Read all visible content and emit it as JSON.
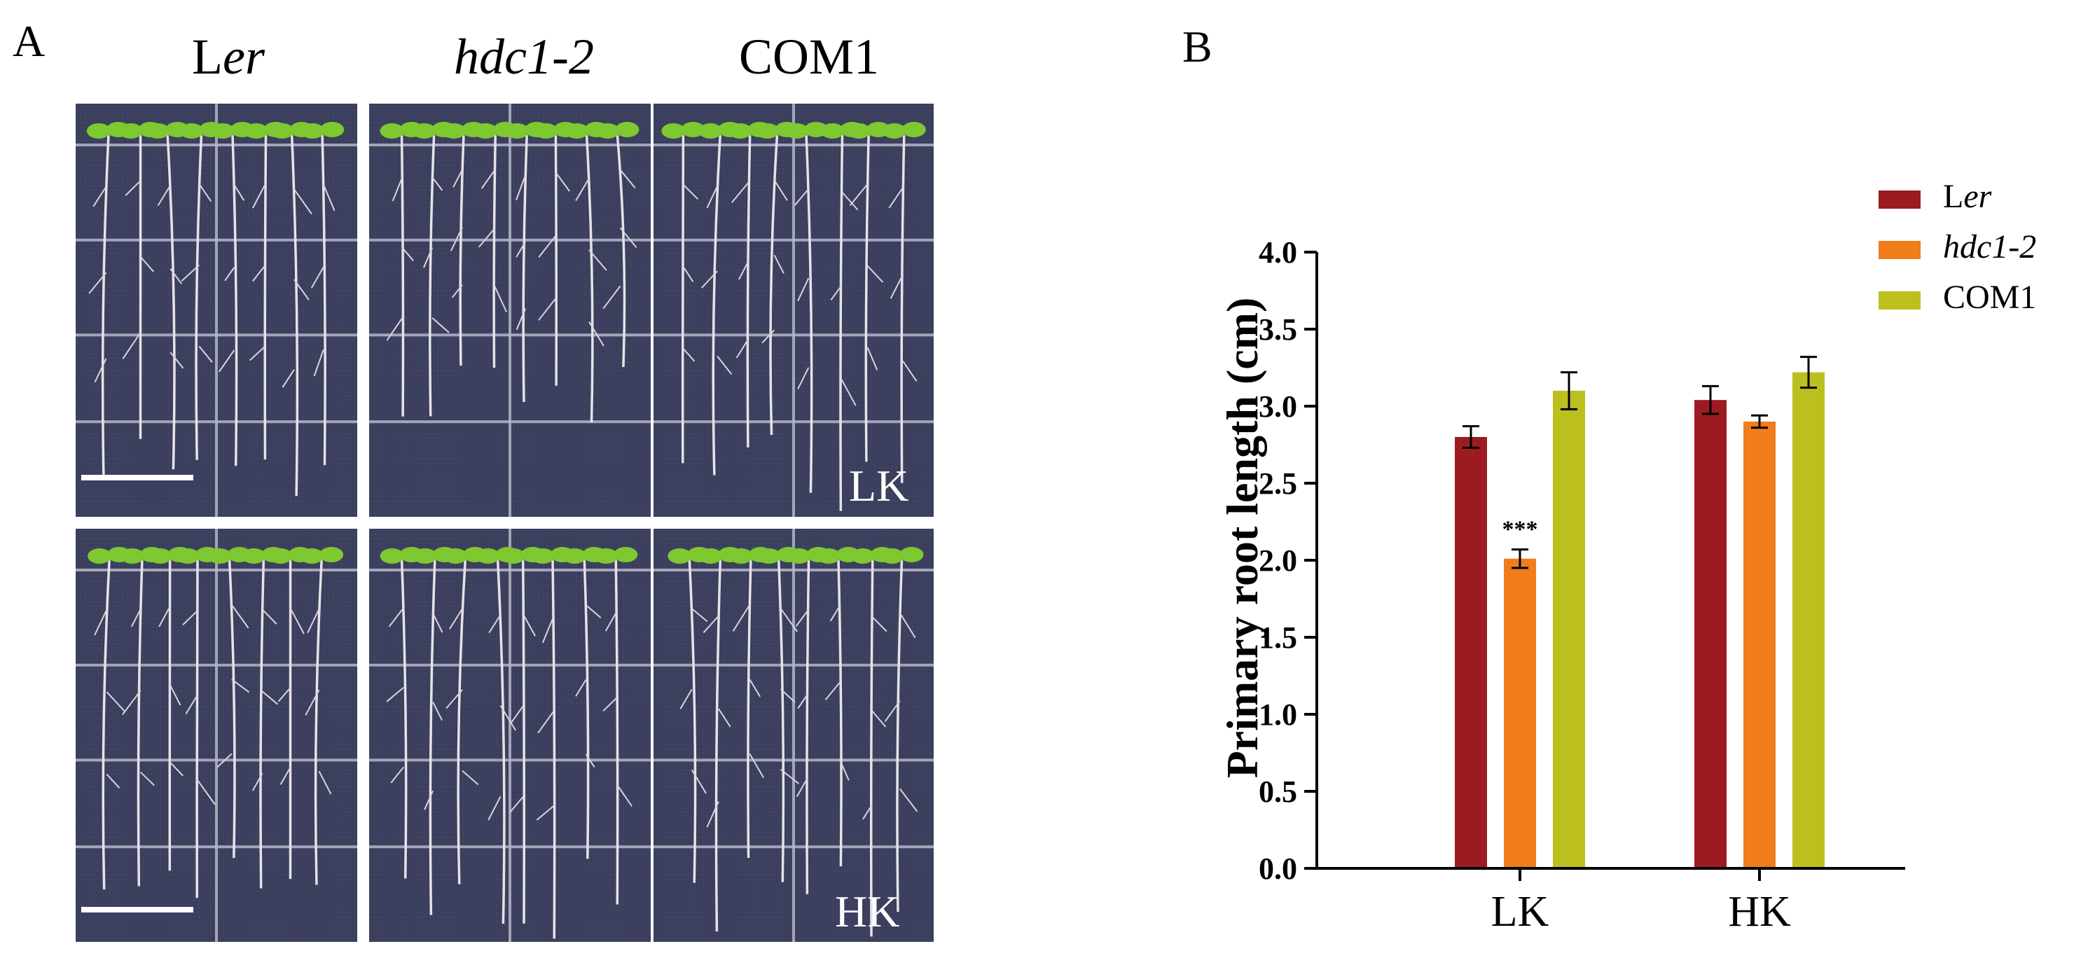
{
  "panels": {
    "a_letter": "A",
    "b_letter": "B"
  },
  "photo": {
    "columns": [
      {
        "prefix": "L",
        "italic": "er"
      },
      {
        "prefix": "",
        "italic": "hdc1-2"
      },
      {
        "prefix": "COM1",
        "italic": ""
      }
    ],
    "conditions": [
      "LK",
      "HK"
    ]
  },
  "colors": {
    "Ler": "#9b1b21",
    "hdc1-2": "#f07c1a",
    "COM1": "#bcc01e",
    "plate": "#3a3f5c",
    "leaf": "#7dc92f"
  },
  "chart_data": {
    "type": "bar",
    "categories": [
      "LK",
      "HK"
    ],
    "series": [
      {
        "name": "Ler",
        "legend_prefix": "L",
        "legend_italic": "er",
        "values": [
          2.8,
          3.04
        ],
        "errors": [
          0.07,
          0.09
        ]
      },
      {
        "name": "hdc1-2",
        "legend_prefix": "",
        "legend_italic": "hdc1-2",
        "values": [
          2.01,
          2.9
        ],
        "errors": [
          0.06,
          0.04
        ]
      },
      {
        "name": "COM1",
        "legend_prefix": "COM1",
        "legend_italic": "",
        "values": [
          3.1,
          3.22
        ],
        "errors": [
          0.12,
          0.1
        ]
      }
    ],
    "annotations": [
      {
        "category": "LK",
        "series": "hdc1-2",
        "text": "***"
      }
    ],
    "ylabel": "Primary root length (cm)",
    "xlabel": "",
    "ylim": [
      0,
      4.0
    ],
    "yticks": [
      "0.0",
      "0.5",
      "1.0",
      "1.5",
      "2.0",
      "2.5",
      "3.0",
      "3.5",
      "4.0"
    ],
    "legend_position": "top-right",
    "grid": false
  }
}
